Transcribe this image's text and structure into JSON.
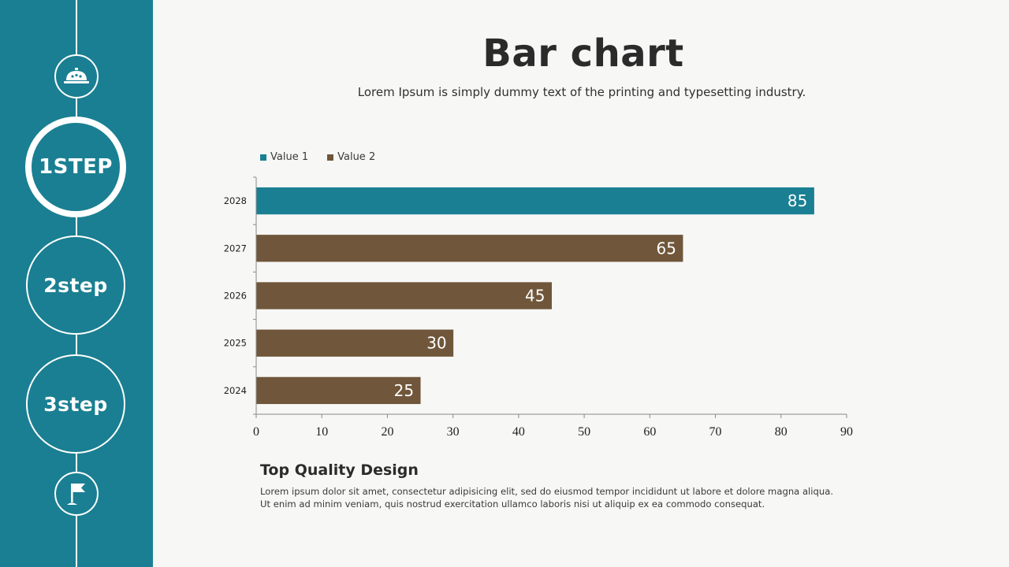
{
  "sidebar": {
    "steps": [
      {
        "label": "1STEP",
        "active": true
      },
      {
        "label": "2step",
        "active": false
      },
      {
        "label": "3step",
        "active": false
      }
    ],
    "top_icon": "service-bell-icon",
    "bottom_icon": "flag-icon"
  },
  "header": {
    "title": "Bar chart",
    "subtitle": "Lorem Ipsum is simply dummy text of the printing and typesetting industry."
  },
  "colors": {
    "sidebar": "#1a7f92",
    "value1": "#1a7f92",
    "value2": "#70563a",
    "background": "#f7f7f6"
  },
  "chart_data": {
    "type": "bar",
    "orientation": "horizontal",
    "categories": [
      "2028",
      "2027",
      "2026",
      "2025",
      "2024"
    ],
    "series": [
      {
        "name": "Value 1",
        "values": [
          85,
          null,
          null,
          null,
          null
        ]
      },
      {
        "name": "Value 2",
        "values": [
          null,
          65,
          45,
          30,
          25
        ]
      }
    ],
    "data_labels": [
      85,
      65,
      45,
      30,
      25
    ],
    "xlim": [
      0,
      90
    ],
    "xticks": [
      0,
      10,
      20,
      30,
      40,
      50,
      60,
      70,
      80,
      90
    ],
    "legend_position": "top-left",
    "grid": false
  },
  "footer": {
    "heading": "Top Quality Design",
    "body": "Lorem ipsum dolor sit amet, consectetur adipisicing elit, sed do eiusmod tempor incididunt ut labore et dolore magna aliqua. Ut enim ad minim veniam, quis nostrud exercitation ullamco laboris nisi ut aliquip ex ea commodo consequat."
  }
}
